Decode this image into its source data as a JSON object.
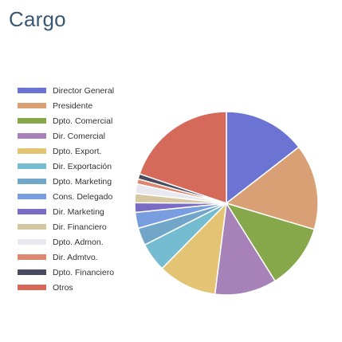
{
  "title": "Cargo",
  "chart_data": {
    "type": "pie",
    "title": "Cargo",
    "legend_position": "left",
    "start_angle_deg": 0,
    "direction": "clockwise",
    "slices": [
      {
        "label": "Director General",
        "value": 14.5,
        "color": "#6c74d3"
      },
      {
        "label": "Presidente",
        "value": 15.1,
        "color": "#d8a074"
      },
      {
        "label": "Dpto. Comercial",
        "value": 11.5,
        "color": "#86a84a"
      },
      {
        "label": "Dir. Comercial",
        "value": 10.9,
        "color": "#a782b9"
      },
      {
        "label": "Dpto. Export.",
        "value": 10.4,
        "color": "#e3c475"
      },
      {
        "label": "Dir. Exportación",
        "value": 5.1,
        "color": "#75bcd0"
      },
      {
        "label": "Dpto. Marketing",
        "value": 3.1,
        "color": "#72a6c8"
      },
      {
        "label": "Cons. Delegado",
        "value": 2.8,
        "color": "#789ee0"
      },
      {
        "label": "Dir. Marketing",
        "value": 1.7,
        "color": "#7a6bc4"
      },
      {
        "label": "Dir. Financiero",
        "value": 1.6,
        "color": "#d5c8a1"
      },
      {
        "label": "Dpto. Admon.",
        "value": 1.7,
        "color": "#e8e8ee"
      },
      {
        "label": "Dir. Admtvo.",
        "value": 0.9,
        "color": "#dd8771"
      },
      {
        "label": "Dpto. Financiero",
        "value": 0.9,
        "color": "#494c5e"
      },
      {
        "label": "Otros",
        "value": 19.8,
        "color": "#d66a5a"
      }
    ]
  }
}
